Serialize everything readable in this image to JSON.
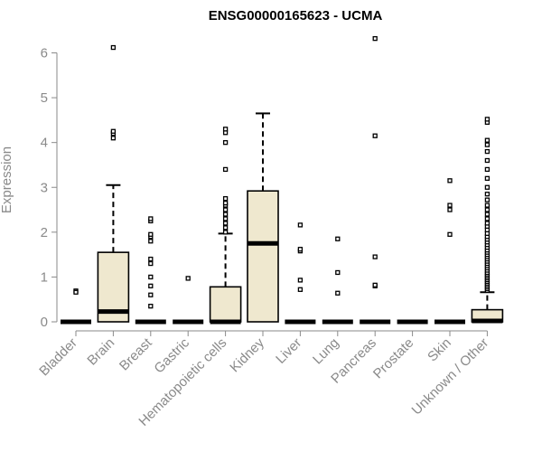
{
  "chart_data": {
    "type": "box",
    "title": "ENSG00000165623 - UCMA",
    "xlabel": "",
    "ylabel": "Expression",
    "ylim": [
      0,
      6.5
    ],
    "yticks": [
      0,
      1,
      2,
      3,
      4,
      5,
      6
    ],
    "box_fill": "#efe8cf",
    "categories": [
      "Bladder",
      "Brain",
      "Breast",
      "Gastric",
      "Hematopoietic cells",
      "Kidney",
      "Liver",
      "Lung",
      "Pancreas",
      "Prostate",
      "Skin",
      "Unknown / Other"
    ],
    "boxes": [
      {
        "q1": 0,
        "median": 0,
        "q3": 0,
        "whisker_low": 0,
        "whisker_high": 0,
        "outliers": [
          0.69,
          0.66
        ]
      },
      {
        "q1": 0,
        "median": 0.23,
        "q3": 1.55,
        "whisker_low": 0,
        "whisker_high": 3.05,
        "outliers": [
          4.1,
          4.2,
          4.25,
          6.12
        ]
      },
      {
        "q1": 0,
        "median": 0,
        "q3": 0,
        "whisker_low": 0,
        "whisker_high": 0,
        "outliers": [
          0.35,
          0.6,
          0.8,
          1.0,
          1.3,
          1.4,
          1.8,
          1.9,
          1.95,
          2.25,
          2.3
        ]
      },
      {
        "q1": 0,
        "median": 0,
        "q3": 0,
        "whisker_low": 0,
        "whisker_high": 0,
        "outliers": [
          0.97
        ]
      },
      {
        "q1": 0,
        "median": 0,
        "q3": 0.78,
        "whisker_low": 0,
        "whisker_high": 1.97,
        "outliers": [
          2.0,
          2.1,
          2.2,
          2.3,
          2.4,
          2.5,
          2.6,
          2.65,
          2.75,
          3.4,
          4.0,
          4.22,
          4.3
        ]
      },
      {
        "q1": 0,
        "median": 1.75,
        "q3": 2.92,
        "whisker_low": 0,
        "whisker_high": 4.65,
        "outliers": []
      },
      {
        "q1": 0,
        "median": 0,
        "q3": 0,
        "whisker_low": 0,
        "whisker_high": 0,
        "outliers": [
          0.72,
          0.93,
          1.58,
          1.62,
          2.16
        ]
      },
      {
        "q1": 0,
        "median": 0,
        "q3": 0,
        "whisker_low": 0,
        "whisker_high": 0,
        "outliers": [
          0.64,
          1.1,
          1.85
        ]
      },
      {
        "q1": 0,
        "median": 0,
        "q3": 0,
        "whisker_low": 0,
        "whisker_high": 0,
        "outliers": [
          0.8,
          0.82,
          1.45,
          4.15,
          6.32
        ]
      },
      {
        "q1": 0,
        "median": 0,
        "q3": 0,
        "whisker_low": 0,
        "whisker_high": 0,
        "outliers": []
      },
      {
        "q1": 0,
        "median": 0,
        "q3": 0,
        "whisker_low": 0,
        "whisker_high": 0,
        "outliers": [
          1.95,
          2.5,
          2.6,
          3.15
        ]
      },
      {
        "q1": 0,
        "median": 0.02,
        "q3": 0.27,
        "whisker_low": 0,
        "whisker_high": 0.66,
        "outliers": [
          0.7,
          0.74,
          0.78,
          0.82,
          0.86,
          0.9,
          0.94,
          0.98,
          1.02,
          1.06,
          1.1,
          1.15,
          1.2,
          1.25,
          1.3,
          1.35,
          1.4,
          1.45,
          1.5,
          1.55,
          1.6,
          1.66,
          1.72,
          1.78,
          1.84,
          1.9,
          1.97,
          2.05,
          2.13,
          2.2,
          2.3,
          2.4,
          2.5,
          2.6,
          2.72,
          2.85,
          3.0,
          3.2,
          3.4,
          3.6,
          3.8,
          3.95,
          4.05,
          4.45,
          4.52
        ]
      }
    ]
  }
}
